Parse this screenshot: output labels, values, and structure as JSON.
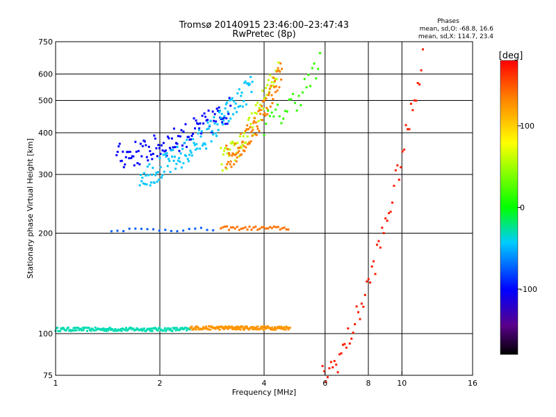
{
  "chart_data": {
    "type": "scatter",
    "title": "Tromsø 20140915 23:46:00–23:47:43",
    "subtitle": "RwPretec (8p)",
    "xlabel": "Frequency [MHz]",
    "ylabel": "Stationary phase Virtual Height [km]",
    "x_scale": "log",
    "y_scale": "log",
    "xlim": [
      1,
      16
    ],
    "ylim": [
      75,
      750
    ],
    "x_ticks": [
      1,
      2,
      4,
      6,
      8,
      10,
      16
    ],
    "x_tick_labels": [
      "1",
      "2",
      "4",
      "6",
      "8",
      "10",
      "16"
    ],
    "y_ticks": [
      75,
      100,
      200,
      300,
      400,
      500,
      600,
      750
    ],
    "y_tick_labels": [
      "75",
      "100",
      "200",
      "300",
      "400",
      "500",
      "600",
      "750"
    ],
    "grid_x": [
      2,
      4,
      6,
      8,
      10
    ],
    "grid_y": [
      100,
      200,
      300,
      400,
      500,
      600
    ],
    "stats": {
      "heading": "Phases",
      "line_o": "mean, sd,O: -68.8, 16.6",
      "line_x": "mean, sd,X: 114.7, 23.4"
    },
    "colorbar": {
      "label": "[deg]",
      "range": [
        -180,
        180
      ],
      "ticks": [
        100,
        0,
        -100
      ],
      "tick_labels": [
        "100",
        "0",
        "-100"
      ]
    },
    "series": [
      {
        "x_range": [
          1.0,
          2.45
        ],
        "y": 103,
        "phase": -30,
        "n": 150
      },
      {
        "x_range": [
          2.45,
          4.75
        ],
        "y": 104,
        "phase": 125,
        "n": 140
      },
      {
        "x_range": [
          1.45,
          2.85
        ],
        "y": 205,
        "phase": -75,
        "n": 18
      },
      {
        "x_range": [
          3.0,
          4.7
        ],
        "y": 207,
        "phase": 140,
        "n": 34
      },
      {
        "x_range": [
          1.5,
          3.2
        ],
        "y": [
          340,
          470
        ],
        "phase": -100,
        "n": 110
      },
      {
        "x_range": [
          1.75,
          3.7
        ],
        "y": [
          300,
          560
        ],
        "phase": -45,
        "n": 130
      },
      {
        "x_range": [
          3.0,
          4.4
        ],
        "y": [
          330,
          640
        ],
        "phase": 60,
        "n": 70
      },
      {
        "x_range": [
          3.1,
          4.5
        ],
        "y": [
          340,
          620
        ],
        "phase": 135,
        "n": 90
      },
      {
        "x_range": [
          4.0,
          5.8
        ],
        "y": [
          430,
          640
        ],
        "phase": 15,
        "n": 30
      },
      {
        "x_range": [
          5.9,
          11.5
        ],
        "y": [
          75,
          680
        ],
        "phase": 170,
        "n": 60
      }
    ]
  }
}
